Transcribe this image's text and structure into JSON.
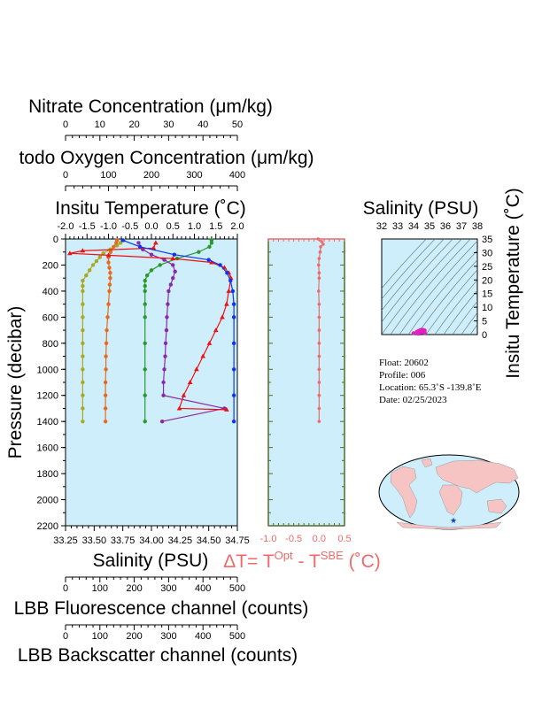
{
  "titles": {
    "nitrate": "Nitrate Concentration (μm/kg)",
    "oxygen": "todo Oxygen Concentration (μm/kg)",
    "temperature": "Insitu Temperature (˚C)",
    "salinity_bottom": "Salinity (PSU)",
    "fluorescence": "LBB Fluorescence channel (counts)",
    "backscatter": "LBB Backscatter channel (counts)",
    "pressure": "Pressure (decibar)",
    "ts_salinity": "Salinity (PSU)",
    "ts_temperature": "Insitu Temperature (˚C)",
    "delta_main": "ΔT= T",
    "delta_sup1": "Opt",
    "delta_mid": " - T",
    "delta_sup2": "SBE",
    "delta_unit": " (˚C)"
  },
  "float_info": {
    "float": "Float:  20602",
    "profile": "Profile:  006",
    "location": "Location:  65.3˚S  -139.8˚E",
    "date": "Date:  02/25/2023"
  },
  "chart_data": [
    {
      "type": "line",
      "name": "main-profile",
      "ylabel": "Pressure (decibar)",
      "ylim": [
        2200,
        0
      ],
      "y_ticks": [
        0,
        200,
        400,
        600,
        800,
        1000,
        1200,
        1400,
        1600,
        1800,
        2000,
        2200
      ],
      "axes": {
        "nitrate": {
          "range": [
            0,
            50
          ],
          "ticks": [
            "0",
            "10",
            "20",
            "30",
            "40",
            "50"
          ]
        },
        "oxygen": {
          "range": [
            0,
            400
          ],
          "ticks": [
            "0",
            "100",
            "200",
            "300",
            "400"
          ]
        },
        "temperature": {
          "range": [
            -2.0,
            2.0
          ],
          "ticks": [
            "-2.0",
            "-1.5",
            "-1.0",
            "-0.5",
            "0.0",
            "0.5",
            "1.0",
            "1.5",
            "2.0"
          ]
        },
        "salinity": {
          "range": [
            33.25,
            34.75
          ],
          "ticks": [
            "33.25",
            "33.50",
            "33.75",
            "34.00",
            "34.25",
            "34.50",
            "34.75"
          ]
        },
        "fluorescence": {
          "range": [
            0,
            500
          ],
          "ticks": [
            "0",
            "100",
            "200",
            "300",
            "400",
            "500"
          ]
        },
        "backscatter": {
          "range": [
            0,
            500
          ],
          "ticks": [
            "0",
            "100",
            "200",
            "300",
            "400",
            "500"
          ]
        }
      },
      "series": [
        {
          "color": "#aaaa22",
          "axis": "nitrate",
          "marker": "circle",
          "points": [
            [
              17,
              10
            ],
            [
              16,
              30
            ],
            [
              15,
              50
            ],
            [
              13,
              80
            ],
            [
              11,
              110
            ],
            [
              10,
              140
            ],
            [
              9,
              170
            ],
            [
              8,
              200
            ],
            [
              7,
              240
            ],
            [
              6,
              280
            ],
            [
              5,
              320
            ],
            [
              5,
              360
            ],
            [
              5,
              400
            ],
            [
              5,
              500
            ],
            [
              5,
              600
            ],
            [
              5,
              700
            ],
            [
              5,
              800
            ],
            [
              5,
              900
            ],
            [
              5,
              1000
            ],
            [
              5,
              1100
            ],
            [
              5,
              1200
            ],
            [
              5,
              1300
            ],
            [
              5,
              1400
            ]
          ]
        },
        {
          "color": "#e86a1e",
          "axis": "oxygen",
          "marker": "circle",
          "points": [
            [
              120,
              10
            ],
            [
              118,
              30
            ],
            [
              112,
              60
            ],
            [
              105,
              100
            ],
            [
              100,
              140
            ],
            [
              100,
              180
            ],
            [
              102,
              220
            ],
            [
              104,
              260
            ],
            [
              104,
              300
            ],
            [
              103,
              350
            ],
            [
              102,
              400
            ],
            [
              100,
              500
            ],
            [
              98,
              600
            ],
            [
              96,
              700
            ],
            [
              95,
              800
            ],
            [
              94,
              900
            ],
            [
              94,
              1000
            ],
            [
              93,
              1100
            ],
            [
              93,
              1200
            ],
            [
              93,
              1300
            ],
            [
              93,
              1400
            ]
          ]
        },
        {
          "color": "#2a9a2a",
          "axis": "temperature",
          "marker": "circle",
          "points": [
            [
              1.4,
              10
            ],
            [
              1.4,
              30
            ],
            [
              1.35,
              60
            ],
            [
              1.1,
              100
            ],
            [
              0.6,
              150
            ],
            [
              0.2,
              200
            ],
            [
              0.0,
              240
            ],
            [
              -0.1,
              280
            ],
            [
              -0.15,
              320
            ],
            [
              -0.15,
              360
            ],
            [
              -0.15,
              400
            ],
            [
              -0.15,
              500
            ],
            [
              -0.15,
              600
            ],
            [
              -0.15,
              800
            ],
            [
              -0.15,
              1000
            ],
            [
              -0.15,
              1200
            ],
            [
              -0.15,
              1400
            ]
          ]
        },
        {
          "color": "#8a2aa8",
          "axis": "temperature",
          "marker": "circle",
          "points": [
            [
              -0.3,
              30
            ],
            [
              -0.2,
              80
            ],
            [
              0.0,
              120
            ],
            [
              0.3,
              160
            ],
            [
              0.5,
              200
            ],
            [
              0.55,
              250
            ],
            [
              0.5,
              300
            ],
            [
              0.45,
              350
            ],
            [
              0.4,
              400
            ],
            [
              0.38,
              500
            ],
            [
              0.36,
              600
            ],
            [
              0.35,
              700
            ],
            [
              0.33,
              800
            ],
            [
              0.32,
              900
            ],
            [
              0.3,
              1000
            ],
            [
              0.28,
              1100
            ],
            [
              0.28,
              1200
            ],
            [
              1.7,
              1300
            ],
            [
              0.25,
              1400
            ]
          ]
        },
        {
          "color": "#ee1111",
          "axis": "temperature",
          "marker": "triangle",
          "points": [
            [
              0.1,
              30
            ],
            [
              0.05,
              70
            ],
            [
              -1.6,
              90
            ],
            [
              -1.9,
              110
            ],
            [
              -1.0,
              125
            ],
            [
              0.5,
              150
            ],
            [
              1.4,
              180
            ],
            [
              1.7,
              220
            ],
            [
              1.8,
              260
            ],
            [
              1.85,
              300
            ],
            [
              1.8,
              400
            ],
            [
              1.75,
              500
            ],
            [
              1.65,
              600
            ],
            [
              1.5,
              700
            ],
            [
              1.35,
              800
            ],
            [
              1.2,
              900
            ],
            [
              1.05,
              1000
            ],
            [
              0.9,
              1100
            ],
            [
              0.75,
              1200
            ],
            [
              0.65,
              1300
            ],
            [
              1.75,
              1310
            ]
          ]
        },
        {
          "color": "#1133ee",
          "axis": "salinity",
          "marker": "circle",
          "points": [
            [
              33.75,
              10
            ],
            [
              33.9,
              60
            ],
            [
              34.2,
              120
            ],
            [
              34.5,
              160
            ],
            [
              34.6,
              200
            ],
            [
              34.66,
              260
            ],
            [
              34.69,
              320
            ],
            [
              34.71,
              400
            ],
            [
              34.72,
              500
            ],
            [
              34.72,
              600
            ],
            [
              34.72,
              800
            ],
            [
              34.72,
              1000
            ],
            [
              34.72,
              1200
            ],
            [
              34.72,
              1400
            ]
          ]
        }
      ]
    },
    {
      "type": "line",
      "name": "delta-T",
      "xlabel": "ΔT",
      "xlim": [
        -1.0,
        0.5
      ],
      "x_ticks": [
        "-1.0",
        "-0.5",
        "0.0",
        "0.5"
      ],
      "ylim": [
        2200,
        0
      ],
      "series": [
        {
          "color": "#f06a6a",
          "points": [
            [
              -0.02,
              0
            ],
            [
              0.05,
              20
            ],
            [
              0.08,
              40
            ],
            [
              0.03,
              60
            ],
            [
              0.02,
              100
            ],
            [
              0.0,
              150
            ],
            [
              -0.01,
              200
            ],
            [
              0.0,
              260
            ],
            [
              0.0,
              300
            ],
            [
              -0.01,
              400
            ],
            [
              0.0,
              500
            ],
            [
              0.0,
              600
            ],
            [
              0.0,
              700
            ],
            [
              0.0,
              800
            ],
            [
              0.0,
              900
            ],
            [
              0.0,
              1000
            ],
            [
              0.0,
              1100
            ],
            [
              0.0,
              1200
            ],
            [
              0.0,
              1300
            ],
            [
              0.0,
              1400
            ]
          ]
        }
      ]
    },
    {
      "type": "scatter",
      "name": "TS-diagram",
      "xlabel": "Salinity (PSU)",
      "ylabel": "Insitu Temperature (˚C)",
      "xlim": [
        32,
        38
      ],
      "ylim": [
        0,
        35
      ],
      "x_ticks": [
        "32",
        "33",
        "34",
        "35",
        "36",
        "37",
        "38"
      ],
      "y_ticks": [
        "0",
        "5",
        "10",
        "15",
        "20",
        "25",
        "30",
        "35"
      ],
      "series": [
        {
          "color": "#e020c0",
          "points": [
            [
              34.0,
              0.5
            ],
            [
              34.2,
              1.0
            ],
            [
              34.3,
              1.3
            ],
            [
              34.4,
              1.6
            ],
            [
              34.5,
              1.8
            ],
            [
              34.6,
              1.7
            ],
            [
              34.7,
              1.5
            ],
            [
              34.3,
              0.3
            ],
            [
              34.5,
              0.8
            ],
            [
              34.7,
              0.6
            ]
          ]
        }
      ]
    }
  ]
}
